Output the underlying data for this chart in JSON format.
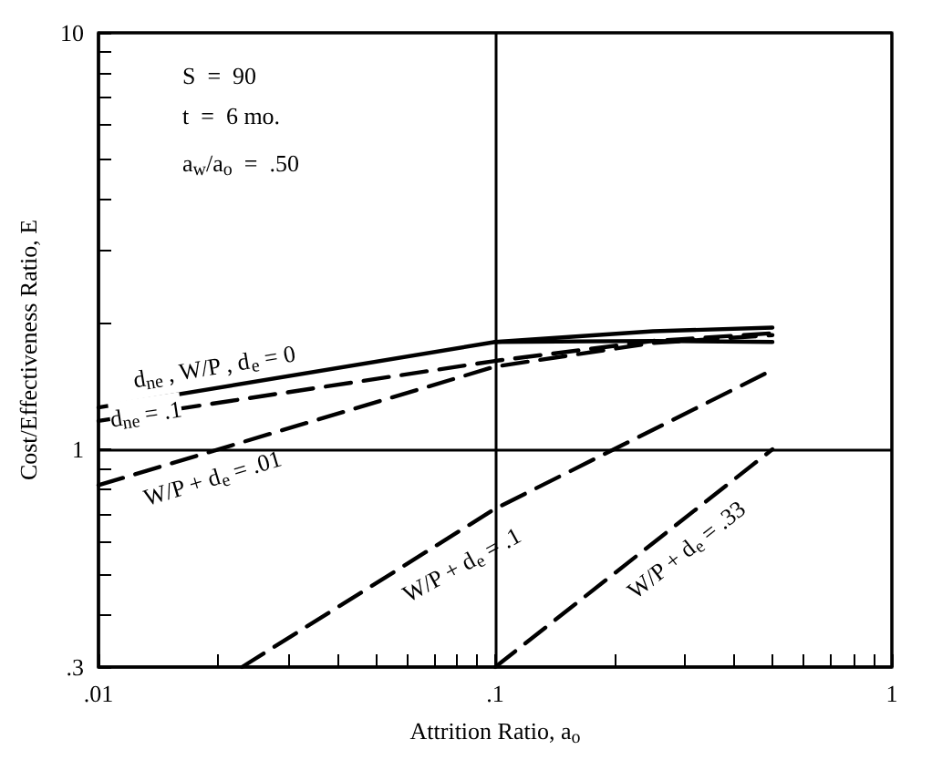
{
  "chart_data": {
    "type": "line",
    "xlabel": "Attrition Ratio, a$_{o}$",
    "ylabel": "Cost/Effectiveness Ratio, E",
    "log": "xy",
    "grid": true,
    "legend": false,
    "marker": "none",
    "xlim": [
      0.01,
      1
    ],
    "ylim": [
      0.3,
      10
    ],
    "xticks": [
      {
        "value": 0.01,
        "label": ".01"
      },
      {
        "value": 0.02,
        "label": null
      },
      {
        "value": 0.03,
        "label": null
      },
      {
        "value": 0.04,
        "label": null
      },
      {
        "value": 0.05,
        "label": null
      },
      {
        "value": 0.06,
        "label": null
      },
      {
        "value": 0.07,
        "label": null
      },
      {
        "value": 0.08,
        "label": null
      },
      {
        "value": 0.09,
        "label": null
      },
      {
        "value": 0.1,
        "label": ".1"
      },
      {
        "value": 0.2,
        "label": null
      },
      {
        "value": 0.3,
        "label": null
      },
      {
        "value": 0.4,
        "label": null
      },
      {
        "value": 0.5,
        "label": null
      },
      {
        "value": 0.6,
        "label": null
      },
      {
        "value": 0.7,
        "label": null
      },
      {
        "value": 0.8,
        "label": null
      },
      {
        "value": 0.9,
        "label": null
      },
      {
        "value": 1,
        "label": "1"
      }
    ],
    "yticks": [
      {
        "value": 0.3,
        "label": ".3"
      },
      {
        "value": 0.4,
        "label": null
      },
      {
        "value": 0.5,
        "label": null
      },
      {
        "value": 0.6,
        "label": null
      },
      {
        "value": 0.7,
        "label": null
      },
      {
        "value": 0.8,
        "label": null
      },
      {
        "value": 0.9,
        "label": null
      },
      1,
      {
        "value": 2,
        "label": null
      },
      {
        "value": 3,
        "label": null
      },
      {
        "value": 4,
        "label": null
      },
      {
        "value": 5,
        "label": null
      },
      {
        "value": 6,
        "label": null
      },
      {
        "value": 7,
        "label": null
      },
      {
        "value": 8,
        "label": null
      },
      {
        "value": 9,
        "label": null
      },
      10
    ],
    "series": [
      {
        "name": "d$_{ne}$ , W/P , d$_{e}$ = 0",
        "color": "#000000",
        "line_style": "solid",
        "x": [
          0.01,
          0.1,
          0.25,
          0.5
        ],
        "values": [
          1.26,
          1.81,
          1.92,
          1.96
        ]
      },
      {
        "color": "#000000",
        "line_style": "solid",
        "x": [
          0.1,
          0.25,
          0.5
        ],
        "values": [
          1.81,
          1.82,
          1.81
        ]
      },
      {
        "name": "d$_{ne}$ = .1",
        "color": "#000000",
        "line_style": "dashed",
        "x": [
          0.01,
          0.1,
          0.25,
          0.5
        ],
        "values": [
          1.17,
          1.63,
          1.82,
          1.9
        ]
      },
      {
        "name": "W/P + d$_{e}$ = .01",
        "color": "#000000",
        "line_style": "dashed",
        "x": [
          0.01,
          0.1,
          0.25,
          0.5
        ],
        "values": [
          0.82,
          1.58,
          1.8,
          1.88
        ]
      },
      {
        "name": "W/P + d$_{e}$ = .1",
        "color": "#000000",
        "line_style": "dashed",
        "x": [
          0.023,
          0.1,
          0.5
        ],
        "values": [
          0.3,
          0.72,
          1.55
        ]
      },
      {
        "name": "W/P + d$_{e}$ = .33",
        "color": "#000000",
        "line_style": "dashed",
        "x": [
          0.1,
          0.5
        ],
        "values": [
          0.3,
          1.0
        ]
      }
    ],
    "annotations": [
      "S  =  90",
      "t  =  6 mo.",
      "a$_{w}$/a$_{o}$  =  .50"
    ]
  }
}
